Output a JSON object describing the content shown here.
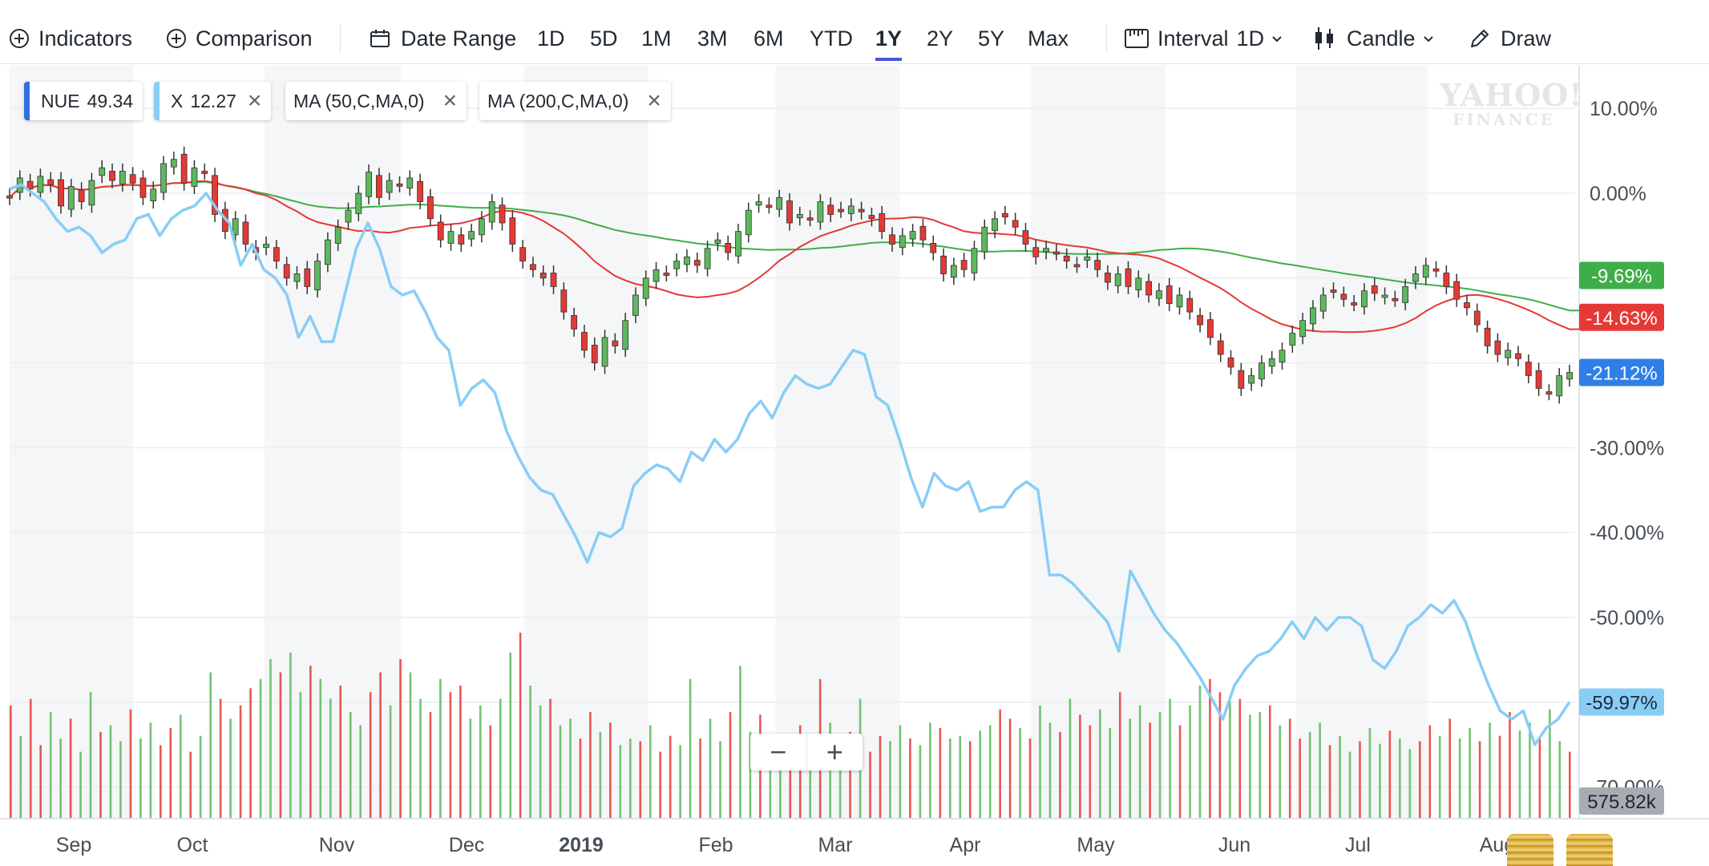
{
  "toolbar": {
    "indicators": "Indicators",
    "comparison": "Comparison",
    "date_range": "Date Range",
    "ranges": [
      "1D",
      "5D",
      "1M",
      "3M",
      "6M",
      "YTD",
      "1Y",
      "2Y",
      "5Y",
      "Max"
    ],
    "selected_range": "1Y",
    "interval_label": "Interval",
    "interval_value": "1D",
    "chart_type": "Candle",
    "draw": "Draw"
  },
  "chips": [
    {
      "name": "NUE",
      "value": "49.34",
      "color": "#2f6fe0",
      "closable": false
    },
    {
      "name": "X",
      "value": "12.27",
      "color": "#88cdf6",
      "closable": true
    },
    {
      "name": "MA (50,C,MA,0)",
      "value": "",
      "color": "",
      "closable": true
    },
    {
      "name": "MA (200,C,MA,0)",
      "value": "",
      "color": "",
      "closable": true
    }
  ],
  "watermark": {
    "line1": "YAHOO!",
    "line2": "FINANCE"
  },
  "zoom": {
    "minus": "−",
    "plus": "+"
  },
  "colors": {
    "up": "#5cb85c",
    "down": "#e53935",
    "ma50": "#e53935",
    "ma200": "#3fae49",
    "compare": "#88cdf6",
    "nue_label": "#2f7fe8",
    "volume_label": "#a6acb2",
    "selected_underline": "#4a56d6"
  },
  "chart_data": {
    "type": "line",
    "xaxis_labels": [
      "Sep",
      "Oct",
      "Nov",
      "Dec",
      "2019",
      "Feb",
      "Mar",
      "Apr",
      "May",
      "Jun",
      "Jul",
      "Aug"
    ],
    "y_ticks": [
      "10.00%",
      "0.00%",
      "-30.00%",
      "-40.00%",
      "-50.00%",
      "-70.00%"
    ],
    "ylim": [
      -73,
      14
    ],
    "series": [
      {
        "name": "NUE",
        "candle_closes": [
          -0.5,
          1.8,
          0.5,
          2.0,
          1.0,
          -1.5,
          0.8,
          -1.0,
          1.5,
          3.0,
          1.5,
          2.6,
          1.2,
          -0.5,
          0.5,
          3.5,
          4.0,
          1.2,
          3.0,
          2.5,
          -2.5,
          -4.5,
          -3.0,
          -6.0,
          -7.0,
          -6.0,
          -8.0,
          -10.0,
          -9.5,
          -11.0,
          -8.0,
          -5.5,
          -4.0,
          -2.0,
          0.0,
          2.5,
          -0.5,
          1.5,
          1.0,
          1.8,
          -1.0,
          -3.0,
          -5.5,
          -4.5,
          -6.0,
          -4.5,
          -3.0,
          -1.0,
          -3.5,
          -6.0,
          -8.0,
          -9.0,
          -10.0,
          -11.0,
          -14.0,
          -16.0,
          -18.5,
          -20.0,
          -17.0,
          -18.0,
          -15.0,
          -12.0,
          -10.0,
          -9.0,
          -9.5,
          -8.0,
          -7.5,
          -8.5,
          -6.5,
          -5.5,
          -7.0,
          -4.5,
          -2.0,
          -1.0,
          -1.5,
          -0.5,
          -3.5,
          -2.5,
          -3.0,
          -1.0,
          -2.5,
          -2.0,
          -1.5,
          -2.2,
          -3.0,
          -4.5,
          -6.0,
          -5.0,
          -4.5,
          -5.5,
          -7.0,
          -9.5,
          -8.5,
          -9.0,
          -6.5,
          -4.0,
          -3.0,
          -2.8,
          -4.0,
          -6.0,
          -7.5,
          -6.5,
          -7.0,
          -8.0,
          -8.5,
          -7.5,
          -9.0,
          -10.5,
          -9.5,
          -11.0,
          -10.0,
          -12.0,
          -11.5,
          -13.0,
          -12.0,
          -14.0,
          -15.5,
          -17.0,
          -19.0,
          -20.5,
          -23.0,
          -21.5,
          -20.0,
          -19.5,
          -18.5,
          -16.5,
          -15.0,
          -13.5,
          -12.0,
          -11.5,
          -12.5,
          -13.0,
          -11.5,
          -11.8,
          -12.0,
          -12.5,
          -11.0,
          -9.5,
          -8.5,
          -9.0,
          -11.0,
          -12.5,
          -13.5,
          -15.5,
          -18.0,
          -19.0,
          -18.5,
          -19.5,
          -21.5,
          -23.0,
          -23.5,
          -21.5,
          -21.12
        ],
        "label": "-21.12%"
      },
      {
        "name": "X",
        "values": [
          0.5,
          1.0,
          0.0,
          -1.0,
          -3.0,
          -4.5,
          -4.0,
          -5.0,
          -7.0,
          -6.0,
          -5.5,
          -3.0,
          -2.5,
          -5.0,
          -3.0,
          -2.0,
          -1.5,
          0.0,
          -2.0,
          -3.5,
          -8.5,
          -6.0,
          -9.0,
          -10.0,
          -12.0,
          -17.0,
          -14.5,
          -17.5,
          -17.5,
          -12.0,
          -6.5,
          -3.5,
          -6.5,
          -11.0,
          -12.0,
          -11.5,
          -14.0,
          -17.0,
          -18.5,
          -25.0,
          -23.0,
          -22.0,
          -23.5,
          -28.0,
          -31.0,
          -33.5,
          -35.0,
          -35.5,
          -38.0,
          -40.5,
          -43.5,
          -40.0,
          -40.5,
          -39.5,
          -34.5,
          -33.0,
          -32.0,
          -32.5,
          -34.0,
          -30.5,
          -31.5,
          -29.0,
          -30.5,
          -29.0,
          -26.0,
          -24.5,
          -26.5,
          -23.5,
          -21.5,
          -22.5,
          -23.0,
          -22.5,
          -20.5,
          -18.5,
          -19.0,
          -24.0,
          -25.0,
          -29.0,
          -33.5,
          -37.0,
          -33.0,
          -34.5,
          -35.0,
          -34.0,
          -37.5,
          -37.0,
          -37.0,
          -35.0,
          -34.0,
          -35.0,
          -45.0,
          -45.0,
          -46.0,
          -47.5,
          -49.0,
          -50.5,
          -54.0,
          -44.5,
          -47.0,
          -49.5,
          -51.5,
          -53.0,
          -55.0,
          -57.0,
          -59.5,
          -62.0,
          -58.0,
          -56.0,
          -54.5,
          -54.0,
          -52.5,
          -50.5,
          -52.5,
          -50.0,
          -51.5,
          -50.0,
          -50.0,
          -51.0,
          -55.0,
          -56.0,
          -54.0,
          -51.0,
          -50.0,
          -48.5,
          -49.5,
          -48.0,
          -50.5,
          -54.5,
          -58.0,
          -61.0,
          -62.0,
          -61.0,
          -65.0,
          -63.0,
          -62.0,
          -59.97
        ],
        "label": "-59.97%"
      },
      {
        "name": "MA (50,C,MA,0)",
        "label": "-14.63%"
      },
      {
        "name": "MA (200,C,MA,0)",
        "label": "-9.69%"
      }
    ],
    "volume": {
      "last_label": "575.82k",
      "values": [
        0.85,
        0.62,
        0.9,
        0.55,
        0.8,
        0.6,
        0.75,
        0.5,
        0.95,
        0.65,
        0.7,
        0.58,
        0.82,
        0.6,
        0.72,
        0.55,
        0.68,
        0.78,
        0.5,
        0.62,
        1.1,
        0.9,
        0.75,
        0.85,
        0.98,
        1.05,
        1.2,
        1.1,
        1.25,
        0.95,
        1.15,
        1.05,
        0.9,
        1.0,
        0.8,
        0.7,
        0.95,
        1.1,
        0.85,
        1.2,
        1.1,
        0.9,
        0.8,
        1.05,
        0.95,
        1.0,
        0.75,
        0.85,
        0.7,
        0.9,
        1.25,
        1.4,
        1.0,
        0.85,
        0.9,
        0.7,
        0.75,
        0.6,
        0.8,
        0.65,
        0.72,
        0.55,
        0.6,
        0.58,
        0.7,
        0.5,
        0.62,
        0.55,
        1.05,
        0.6,
        0.75,
        0.58,
        0.8,
        1.15,
        0.65,
        0.78,
        0.6,
        0.62,
        0.55,
        0.7,
        0.6,
        1.05,
        0.72,
        0.55,
        0.65,
        0.9,
        0.5,
        0.62,
        0.58,
        0.7,
        0.6,
        0.55,
        0.72,
        0.68,
        0.6,
        0.62,
        0.58,
        0.66,
        0.7,
        0.82,
        0.75,
        0.68,
        0.6,
        0.85,
        0.72,
        0.65,
        0.9,
        0.78,
        0.7,
        0.82,
        0.68,
        0.95,
        0.75,
        0.85,
        0.72,
        0.8,
        0.9,
        0.7,
        0.85,
        1.0,
        1.05,
        0.95,
        0.88,
        0.9,
        0.78,
        0.8,
        0.85,
        0.7,
        0.75,
        0.6,
        0.65,
        0.72,
        0.55,
        0.62,
        0.5,
        0.58,
        0.68,
        0.56,
        0.66,
        0.6,
        0.52,
        0.58,
        0.7,
        0.62,
        0.75,
        0.6,
        0.68,
        0.58,
        0.72,
        0.62,
        0.8,
        0.66,
        0.72,
        0.6,
        0.82,
        0.58,
        0.5
      ]
    }
  }
}
